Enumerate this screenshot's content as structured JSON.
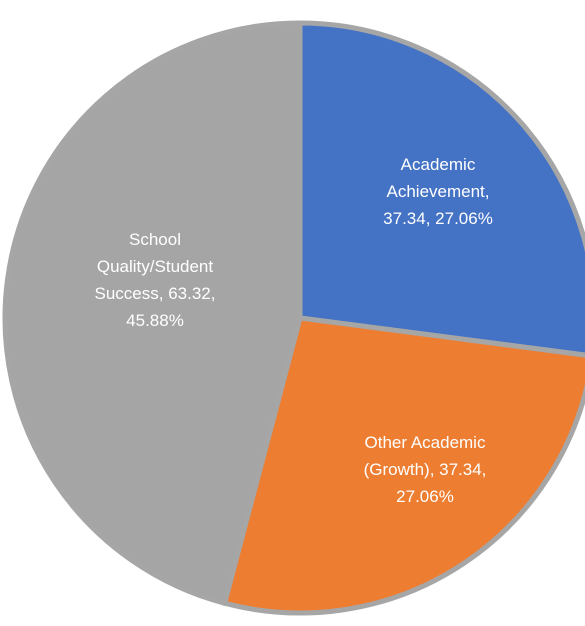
{
  "chart_data": {
    "type": "pie",
    "title": "",
    "slices": [
      {
        "name": "Academic Achievement",
        "value": 37.34,
        "percent": "27.06%",
        "color": "#4472c4",
        "label_lines": [
          "Academic",
          "Achievement,",
          "37.34, 27.06%"
        ]
      },
      {
        "name": "Other Academic (Growth)",
        "value": 37.34,
        "percent": "27.06%",
        "color": "#ed7d31",
        "label_lines": [
          "Other Academic",
          "(Growth), 37.34,",
          "27.06%"
        ]
      },
      {
        "name": "School Quality/Student Success",
        "value": 63.32,
        "percent": "45.88%",
        "color": "#a5a5a5",
        "label_lines": [
          "School",
          "Quality/Student",
          "Success, 63.32,",
          "45.88%"
        ]
      }
    ]
  }
}
